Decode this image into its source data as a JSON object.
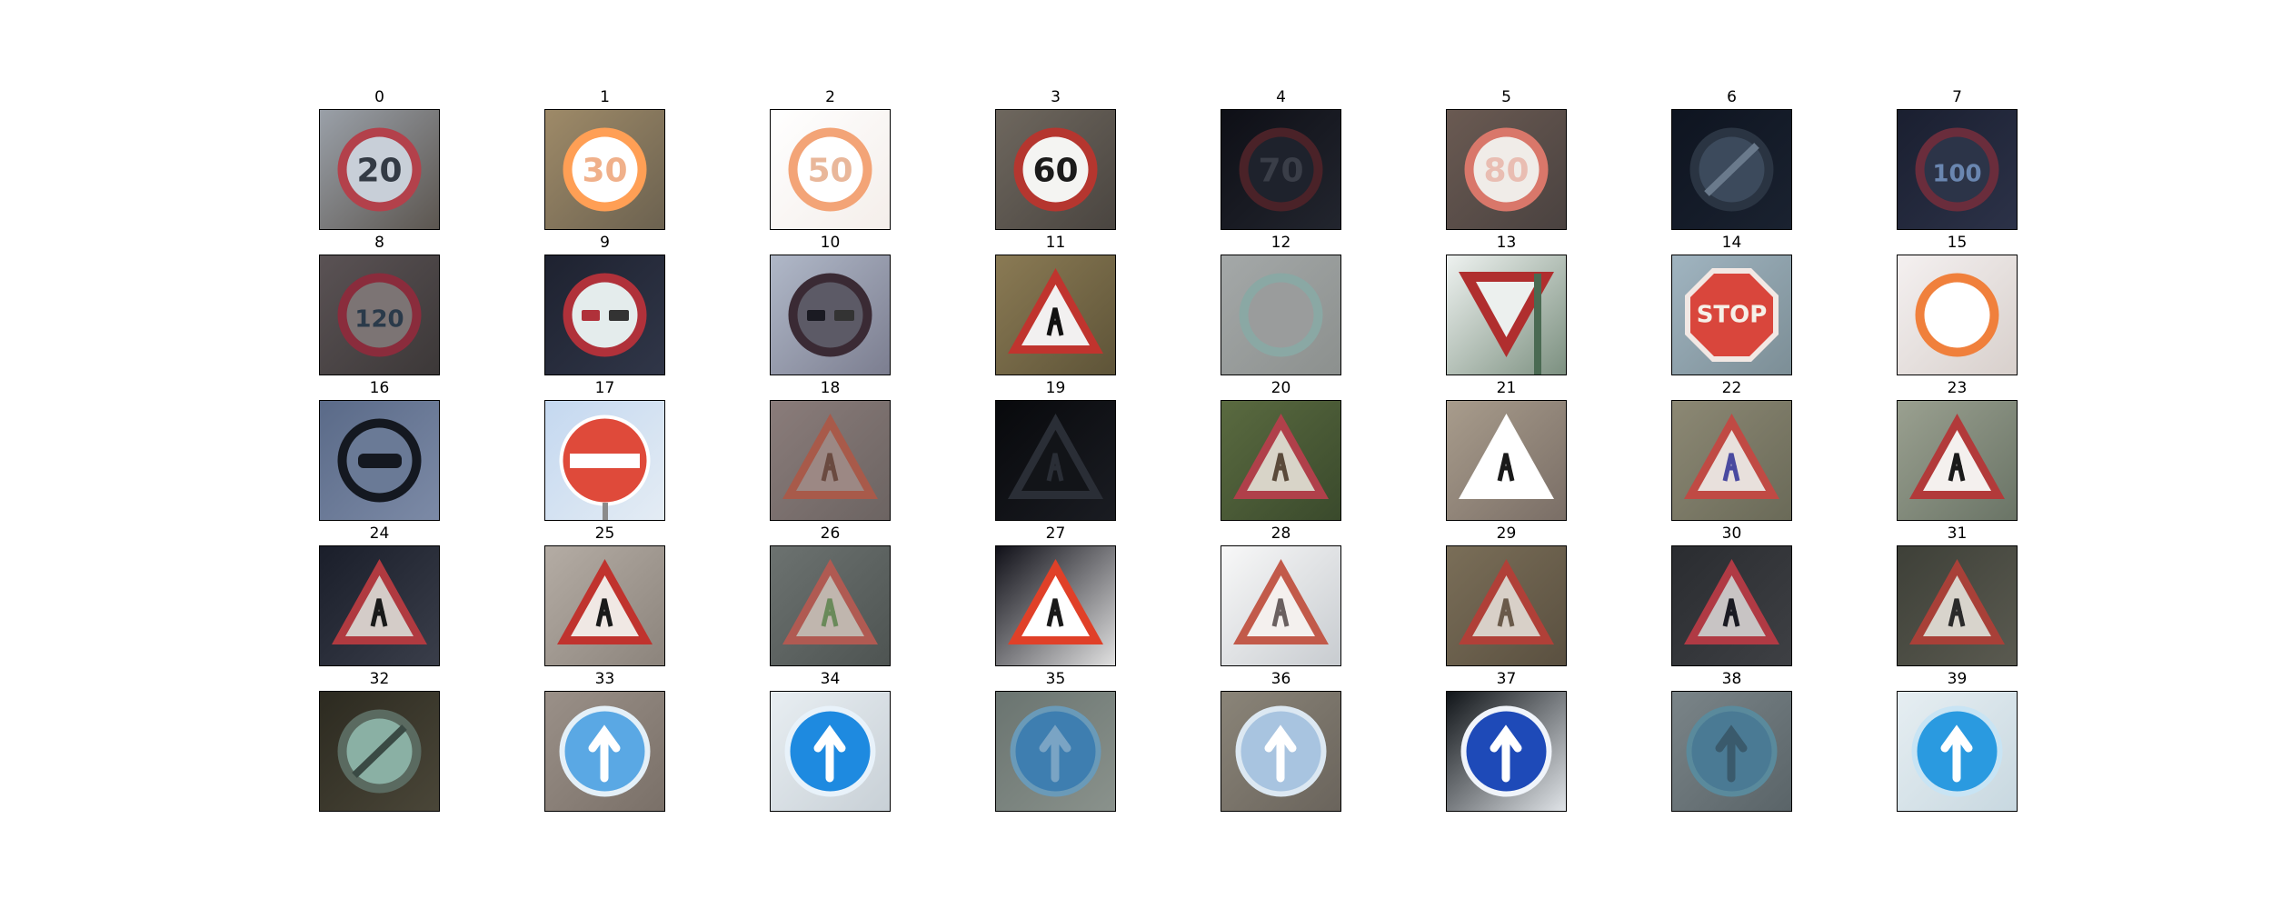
{
  "figure": {
    "panels": [
      {
        "label": "0",
        "icon": "speed-limit-20-sign",
        "sign": {
          "kind": "ring",
          "text": "20",
          "fill": "#c8cfd8",
          "ring": "#b3414b",
          "ink": "#333a44"
        },
        "bg": [
          "#9aa0a8",
          "#5c5650"
        ]
      },
      {
        "label": "1",
        "icon": "speed-limit-30-sign",
        "sign": {
          "kind": "ring",
          "text": "30",
          "fill": "#ffffff",
          "ring": "#ff9f55",
          "ink": "#f0b08a"
        },
        "bg": [
          "#9e8a68",
          "#6c6250"
        ]
      },
      {
        "label": "2",
        "icon": "speed-limit-50-sign",
        "sign": {
          "kind": "ring",
          "text": "50",
          "fill": "#ffffff",
          "ring": "#f3a477",
          "ink": "#e9b79a"
        },
        "bg": [
          "#ffffff",
          "#f4eeea"
        ]
      },
      {
        "label": "3",
        "icon": "speed-limit-60-sign",
        "sign": {
          "kind": "ring",
          "text": "60",
          "fill": "#f4f4f2",
          "ring": "#b5362f",
          "ink": "#1b1b1b"
        },
        "bg": [
          "#6e675e",
          "#4a4540"
        ]
      },
      {
        "label": "4",
        "icon": "speed-limit-70-sign",
        "sign": {
          "kind": "ring",
          "text": "70",
          "fill": "#1e222c",
          "ring": "#4a2228",
          "ink": "#3a3e48"
        },
        "bg": [
          "#0e0f16",
          "#22252e"
        ]
      },
      {
        "label": "5",
        "icon": "speed-limit-80-sign",
        "sign": {
          "kind": "ring",
          "text": "80",
          "fill": "#f0ece8",
          "ring": "#d9776a",
          "ink": "#e9bdb2"
        },
        "bg": [
          "#6a5a52",
          "#4a4240"
        ]
      },
      {
        "label": "6",
        "icon": "end-speed-limit-80-sign",
        "sign": {
          "kind": "slash",
          "text": "",
          "fill": "#3c4a5c",
          "ring": "#2a3442",
          "ink": "#6a7a8c"
        },
        "bg": [
          "#0e1420",
          "#1a2230"
        ]
      },
      {
        "label": "7",
        "icon": "speed-limit-100-sign",
        "sign": {
          "kind": "ring",
          "text": "100",
          "fill": "#2c3448",
          "ring": "#6a2d3c",
          "ink": "#6a86b0"
        },
        "bg": [
          "#1a1f30",
          "#2c3248"
        ]
      },
      {
        "label": "8",
        "icon": "speed-limit-120-sign",
        "sign": {
          "kind": "ring",
          "text": "120",
          "fill": "#7c7474",
          "ring": "#8a2c3c",
          "ink": "#2a3a4a"
        },
        "bg": [
          "#5a5254",
          "#3c3838"
        ]
      },
      {
        "label": "9",
        "icon": "no-passing-sign",
        "sign": {
          "kind": "ring",
          "text": "",
          "fill": "#e4ecec",
          "ring": "#b0313a",
          "ink": "#b0313a"
        },
        "bg": [
          "#1e2230",
          "#303648"
        ]
      },
      {
        "label": "10",
        "icon": "no-passing-trucks-sign",
        "sign": {
          "kind": "ring",
          "text": "",
          "fill": "#5c5a66",
          "ring": "#3a2a34",
          "ink": "#1a1a22"
        },
        "bg": [
          "#b0b8c8",
          "#7c7e90"
        ]
      },
      {
        "label": "11",
        "icon": "right-of-way-intersection-sign",
        "sign": {
          "kind": "triangle",
          "text": "",
          "fill": "#f2f0f0",
          "ring": "#c0342e",
          "ink": "#111111"
        },
        "bg": [
          "#8a7a54",
          "#5e5438"
        ]
      },
      {
        "label": "12",
        "icon": "priority-road-sign",
        "sign": {
          "kind": "ring",
          "text": "",
          "fill": "#9a9c9c",
          "ring": "#8aa8a4",
          "ink": "#7a7c7c"
        },
        "bg": [
          "#a4a8a8",
          "#8c908e"
        ]
      },
      {
        "label": "13",
        "icon": "yield-sign",
        "sign": {
          "kind": "inverted",
          "text": "",
          "fill": "#ecf0ee",
          "ring": "#b02e2e",
          "ink": "#ecf0ee"
        },
        "bg": [
          "#eef2f0",
          "#7c9080"
        ]
      },
      {
        "label": "14",
        "icon": "stop-sign",
        "sign": {
          "kind": "octagon",
          "text": "STOP",
          "fill": "#d9463c",
          "ring": "#f2e8e4",
          "ink": "#f6f0e8"
        },
        "bg": [
          "#a0b4c0",
          "#7c8e96"
        ]
      },
      {
        "label": "15",
        "icon": "no-vehicles-sign",
        "sign": {
          "kind": "ring",
          "text": "",
          "fill": "#ffffff",
          "ring": "#f0803c",
          "ink": "#ffffff"
        },
        "bg": [
          "#f4f0f0",
          "#d8d0cc"
        ]
      },
      {
        "label": "16",
        "icon": "no-trucks-sign",
        "sign": {
          "kind": "ring",
          "text": "",
          "fill": "#6a7a96",
          "ring": "#141820",
          "ink": "#141820"
        },
        "bg": [
          "#5a6a88",
          "#7c8aa6"
        ]
      },
      {
        "label": "17",
        "icon": "no-entry-sign",
        "sign": {
          "kind": "noentry",
          "text": "",
          "fill": "#df4a3a",
          "ring": "#e85a44",
          "ink": "#ffffff"
        },
        "bg": [
          "#c4d8f0",
          "#e4ecf4"
        ]
      },
      {
        "label": "18",
        "icon": "general-caution-sign",
        "sign": {
          "kind": "triangle",
          "text": "",
          "fill": "#9c8884",
          "ring": "#a85a4a",
          "ink": "#6a4a40"
        },
        "bg": [
          "#8a7c7a",
          "#6c6462"
        ]
      },
      {
        "label": "19",
        "icon": "dangerous-curve-left-sign",
        "sign": {
          "kind": "triangle",
          "text": "",
          "fill": "#121418",
          "ring": "#2a2e36",
          "ink": "#2a2e36"
        },
        "bg": [
          "#08090c",
          "#1a1c22"
        ]
      },
      {
        "label": "20",
        "icon": "dangerous-curve-right-sign",
        "sign": {
          "kind": "triangle",
          "text": "",
          "fill": "#d8d4c8",
          "ring": "#b0404a",
          "ink": "#5a4a3a"
        },
        "bg": [
          "#5a6a40",
          "#3a4a2c"
        ]
      },
      {
        "label": "21",
        "icon": "double-curve-sign",
        "sign": {
          "kind": "triangle",
          "text": "",
          "fill": "#ffffff",
          "ring": "#ffffff",
          "ink": "#1a1a1a"
        },
        "bg": [
          "#a89c8c",
          "#7a6e66"
        ]
      },
      {
        "label": "22",
        "icon": "bumpy-road-sign",
        "sign": {
          "kind": "triangle",
          "text": "",
          "fill": "#e8e0dc",
          "ring": "#c04a44",
          "ink": "#4a4aa0"
        },
        "bg": [
          "#8c8874",
          "#6a6a58"
        ]
      },
      {
        "label": "23",
        "icon": "slippery-road-sign",
        "sign": {
          "kind": "triangle",
          "text": "",
          "fill": "#f4f0ee",
          "ring": "#b23a3a",
          "ink": "#1a1a1a"
        },
        "bg": [
          "#9aa090",
          "#6a7466"
        ]
      },
      {
        "label": "24",
        "icon": "road-narrows-sign",
        "sign": {
          "kind": "triangle",
          "text": "",
          "fill": "#d4ccc8",
          "ring": "#b03a40",
          "ink": "#1a1a1a"
        },
        "bg": [
          "#1a1e2a",
          "#3a3e4a"
        ]
      },
      {
        "label": "25",
        "icon": "road-work-sign",
        "sign": {
          "kind": "triangle",
          "text": "",
          "fill": "#f0e8e4",
          "ring": "#c0332e",
          "ink": "#1a1a1a"
        },
        "bg": [
          "#b4aca4",
          "#8c847c"
        ]
      },
      {
        "label": "26",
        "icon": "traffic-signals-sign",
        "sign": {
          "kind": "triangle",
          "text": "",
          "fill": "#c0b6ae",
          "ring": "#b05a52",
          "ink": "#6a8a5a"
        },
        "bg": [
          "#6c7270",
          "#4e5452"
        ]
      },
      {
        "label": "27",
        "icon": "pedestrians-sign",
        "sign": {
          "kind": "triangle",
          "text": "",
          "fill": "#ffffff",
          "ring": "#e04028",
          "ink": "#1a1a1a"
        },
        "bg": [
          "#101018",
          "#e0e0e0"
        ]
      },
      {
        "label": "28",
        "icon": "children-crossing-sign",
        "sign": {
          "kind": "triangle",
          "text": "",
          "fill": "#f4f0ee",
          "ring": "#c25a4a",
          "ink": "#6a6060"
        },
        "bg": [
          "#f8f8f8",
          "#c8ccd0"
        ]
      },
      {
        "label": "29",
        "icon": "bicycles-crossing-sign",
        "sign": {
          "kind": "triangle",
          "text": "",
          "fill": "#d8d0c8",
          "ring": "#b04038",
          "ink": "#6a5a4a"
        },
        "bg": [
          "#7a6e58",
          "#5a5040"
        ]
      },
      {
        "label": "30",
        "icon": "beware-ice-snow-sign",
        "sign": {
          "kind": "triangle",
          "text": "",
          "fill": "#c8c4c4",
          "ring": "#b03a44",
          "ink": "#1a1a22"
        },
        "bg": [
          "#2a2c30",
          "#3e4044"
        ]
      },
      {
        "label": "31",
        "icon": "wild-animals-crossing-sign",
        "sign": {
          "kind": "triangle",
          "text": "",
          "fill": "#d8d4cc",
          "ring": "#a84038",
          "ink": "#2a2a2a"
        },
        "bg": [
          "#3e4038",
          "#5a5a50"
        ]
      },
      {
        "label": "32",
        "icon": "end-of-all-limits-sign",
        "sign": {
          "kind": "slash",
          "text": "",
          "fill": "#8ab0a4",
          "ring": "#5a6a60",
          "ink": "#3a4a44"
        },
        "bg": [
          "#2c2a20",
          "#4a4638"
        ]
      },
      {
        "label": "33",
        "icon": "turn-right-ahead-sign",
        "sign": {
          "kind": "blue",
          "text": "",
          "fill": "#5aa8e4",
          "ring": "#e4f0f8",
          "ink": "#ffffff"
        },
        "bg": [
          "#9a9088",
          "#7a7068"
        ]
      },
      {
        "label": "34",
        "icon": "turn-left-ahead-sign",
        "sign": {
          "kind": "blue",
          "text": "",
          "fill": "#1e8ae0",
          "ring": "#e8f2fa",
          "ink": "#ffffff"
        },
        "bg": [
          "#e8eef2",
          "#c8d0d6"
        ]
      },
      {
        "label": "35",
        "icon": "ahead-only-sign",
        "sign": {
          "kind": "blue",
          "text": "",
          "fill": "#3e7eb0",
          "ring": "#6a9ab8",
          "ink": "#7aa4c4"
        },
        "bg": [
          "#6a7470",
          "#8a928c"
        ]
      },
      {
        "label": "36",
        "icon": "go-straight-or-right-sign",
        "sign": {
          "kind": "blue",
          "text": "",
          "fill": "#a8c4e0",
          "ring": "#dce8f2",
          "ink": "#ffffff"
        },
        "bg": [
          "#8a8478",
          "#6a645c"
        ]
      },
      {
        "label": "37",
        "icon": "go-straight-or-left-sign",
        "sign": {
          "kind": "blue",
          "text": "",
          "fill": "#1e4ab8",
          "ring": "#f0f4fa",
          "ink": "#ffffff"
        },
        "bg": [
          "#101418",
          "#e0e4e8"
        ]
      },
      {
        "label": "38",
        "icon": "keep-right-sign",
        "sign": {
          "kind": "blue",
          "text": "",
          "fill": "#4a7a94",
          "ring": "#5a8a9c",
          "ink": "#3a5a6c"
        },
        "bg": [
          "#7a8488",
          "#5a6468"
        ]
      },
      {
        "label": "39",
        "icon": "keep-left-sign",
        "sign": {
          "kind": "blue",
          "text": "",
          "fill": "#2a9ae0",
          "ring": "#c8e4f4",
          "ink": "#ffffff"
        },
        "bg": [
          "#e6eef2",
          "#c8d8e0"
        ]
      }
    ]
  }
}
